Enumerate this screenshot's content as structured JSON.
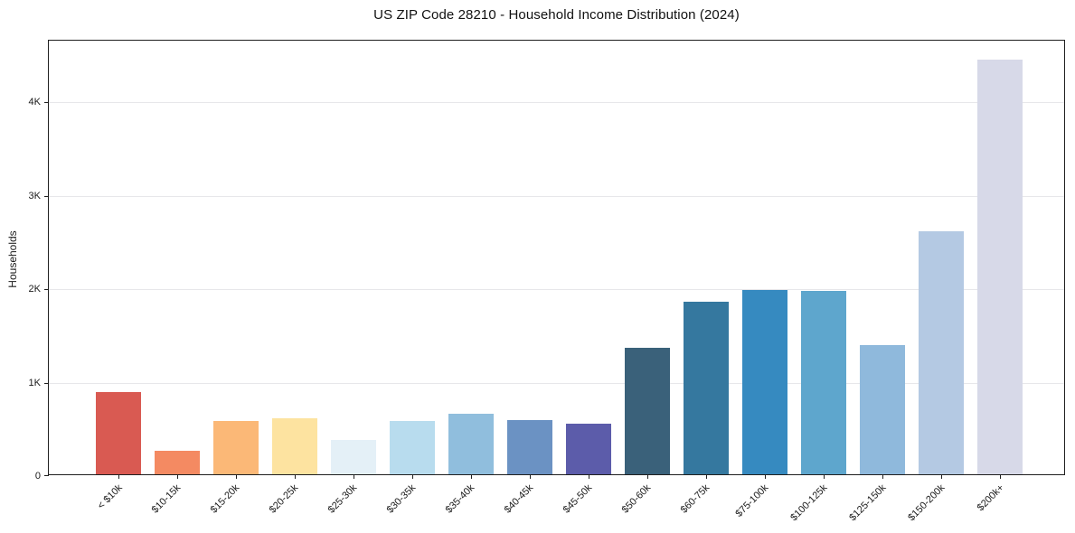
{
  "page": {
    "background_color": "#ffffff"
  },
  "chart_data": {
    "type": "bar",
    "title": "US ZIP Code 28210 - Household Income Distribution (2024)",
    "xlabel": "",
    "ylabel": "Households",
    "categories": [
      "< $10k",
      "$10-15k",
      "$15-20k",
      "$20-25k",
      "$25-30k",
      "$30-35k",
      "$35-40k",
      "$40-45k",
      "$45-50k",
      "$50-60k",
      "$60-75k",
      "$75-100k",
      "$100-125k",
      "$125-150k",
      "$150-200k",
      "$200k+"
    ],
    "values": [
      880,
      255,
      575,
      600,
      370,
      575,
      650,
      585,
      540,
      1350,
      1845,
      1970,
      1965,
      1385,
      2600,
      4435
    ],
    "bar_colors": [
      "#d95a52",
      "#f48a62",
      "#fbb877",
      "#fde3a0",
      "#e4f0f7",
      "#b8dcee",
      "#90bedd",
      "#6b92c3",
      "#5c5caa",
      "#3a617a",
      "#35789f",
      "#368ac0",
      "#5ea6cd",
      "#8fb9dc",
      "#b4c9e3",
      "#d7d9e8"
    ],
    "yticks": [
      {
        "value": 0,
        "label": "0"
      },
      {
        "value": 1000,
        "label": "1K"
      },
      {
        "value": 2000,
        "label": "2K"
      },
      {
        "value": 3000,
        "label": "3K"
      },
      {
        "value": 4000,
        "label": "4K"
      }
    ],
    "ylim": [
      0,
      4660
    ],
    "grid": "horizontal",
    "gridline_color": "#e7e7ea",
    "spine_color": "#1f1f1f",
    "text_color": "#1a1a1a",
    "legend": "none",
    "x_tick_label_rotation_deg": 45
  }
}
